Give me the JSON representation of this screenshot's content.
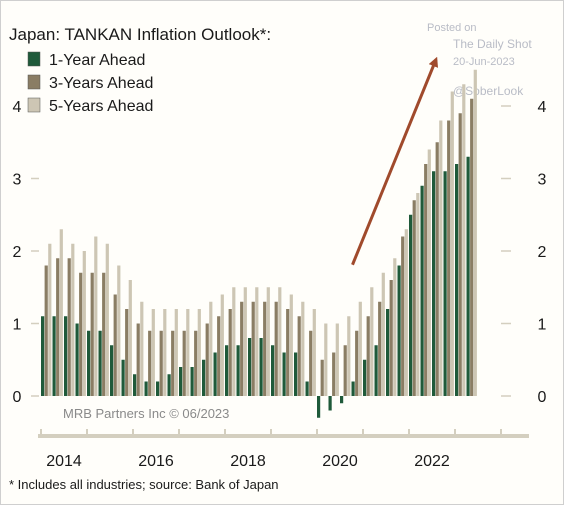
{
  "chart_data": {
    "type": "bar",
    "title": "Japan: TANKAN Inflation Outlook*:",
    "footnote": "* Includes all industries; source: Bank of Japan",
    "credit": "MRB Partners Inc © 06/2023",
    "watermark": {
      "line1": "Posted on",
      "line2": "The Daily Shot",
      "line3": "20-Jun-2023",
      "line4": "@SoberLook"
    },
    "ylim": [
      0,
      4.6
    ],
    "y_ticks": [
      "0",
      "1",
      "2",
      "3",
      "4"
    ],
    "x_ticks": [
      "2014",
      "2016",
      "2018",
      "2020",
      "2022"
    ],
    "quarters_start": "2014Q1",
    "series": [
      {
        "name": "1-Year Ahead",
        "color": "#1f5a3a",
        "values": [
          1.1,
          1.1,
          1.1,
          1.0,
          0.9,
          0.9,
          0.7,
          0.5,
          0.3,
          0.2,
          0.2,
          0.3,
          0.4,
          0.4,
          0.5,
          0.6,
          0.7,
          0.7,
          0.8,
          0.8,
          0.7,
          0.6,
          0.6,
          0.2,
          -0.3,
          -0.2,
          -0.1,
          0.2,
          0.5,
          0.7,
          1.2,
          1.8,
          2.5,
          2.9,
          3.1,
          3.1,
          3.2,
          3.3
        ]
      },
      {
        "name": "3-Years Ahead",
        "color": "#8a7d64",
        "values": [
          1.8,
          1.9,
          1.9,
          1.7,
          1.7,
          1.7,
          1.4,
          1.2,
          1.0,
          0.9,
          0.9,
          0.9,
          0.9,
          0.9,
          1.0,
          1.1,
          1.2,
          1.3,
          1.3,
          1.3,
          1.3,
          1.2,
          1.1,
          0.9,
          0.5,
          0.6,
          0.7,
          0.9,
          1.1,
          1.3,
          1.6,
          2.2,
          2.7,
          3.2,
          3.5,
          3.8,
          3.9,
          4.1
        ]
      },
      {
        "name": "5-Years Ahead",
        "color": "#cdc6b4",
        "values": [
          2.1,
          2.3,
          2.1,
          2.0,
          2.2,
          2.1,
          1.8,
          1.6,
          1.3,
          1.2,
          1.2,
          1.2,
          1.2,
          1.2,
          1.3,
          1.4,
          1.5,
          1.5,
          1.5,
          1.5,
          1.5,
          1.4,
          1.3,
          1.2,
          1.0,
          1.0,
          1.1,
          1.3,
          1.5,
          1.7,
          1.9,
          2.3,
          2.8,
          3.4,
          3.8,
          4.2,
          4.3,
          4.5
        ]
      }
    ],
    "annotation": {
      "type": "arrow",
      "color": "#a04a2c",
      "from_quarter": "2020Q4",
      "from_value": 1.7,
      "to_quarter": "2022Q3",
      "to_value": 4.6
    }
  }
}
